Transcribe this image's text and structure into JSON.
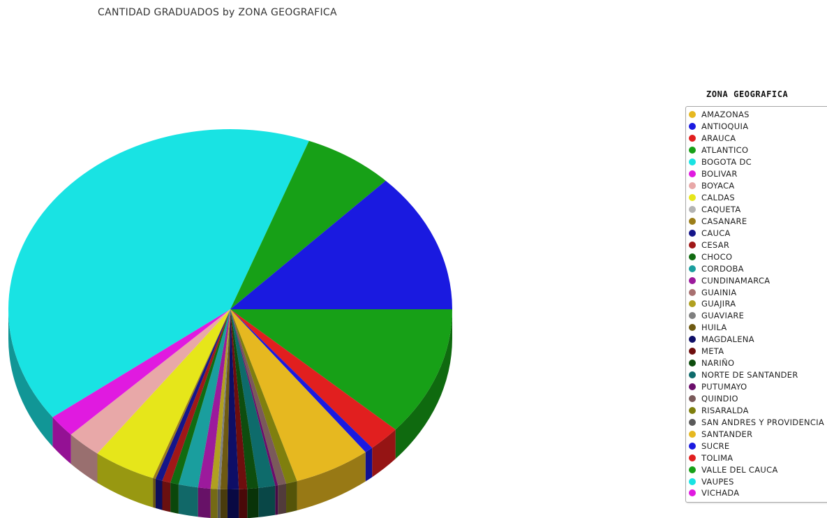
{
  "chart_data": {
    "type": "pie",
    "title": "CANTIDAD GRADUADOS by ZONA GEOGRAFICA",
    "legend_title": "ZONA GEOGRAFICA",
    "legend_position": "right",
    "style": "3d",
    "categories": [
      "AMAZONAS",
      "ANTIOQUIA",
      "ARAUCA",
      "ATLANTICO",
      "BOGOTA DC",
      "BOLIVAR",
      "BOYACA",
      "CALDAS",
      "CAQUETA",
      "CASANARE",
      "CAUCA",
      "CESAR",
      "CHOCO",
      "CORDOBA",
      "CUNDINAMARCA",
      "GUAINIA",
      "GUAJIRA",
      "GUAVIARE",
      "HUILA",
      "MAGDALENA",
      "META",
      "NARIÑO",
      "NORTE DE SANTANDER",
      "PUTUMAYO",
      "QUINDIO",
      "RISARALDA",
      "SAN ANDRES Y PROVIDENCIA",
      "SANTANDER",
      "SUCRE",
      "TOLIMA",
      "VALLE DEL CAUCA",
      "VAUPES",
      "VICHADA"
    ],
    "values": [
      0,
      12.5,
      0,
      6.5,
      40.5,
      2.0,
      2.5,
      4.5,
      0,
      0.2,
      0.5,
      0.6,
      0.6,
      1.4,
      0.9,
      0,
      0.5,
      0.2,
      0.5,
      0.8,
      0.6,
      0.8,
      1.2,
      0.2,
      0.6,
      0.8,
      0,
      5.5,
      0.6,
      2.3,
      11.5,
      0,
      0
    ],
    "colors": [
      "#E6B820",
      "#1A1AE0",
      "#E11F1F",
      "#17A017",
      "#19E3E3",
      "#E01AE0",
      "#E8A8A8",
      "#E6E61A",
      "#B3B3B3",
      "#9C7E1A",
      "#15158A",
      "#A01818",
      "#116B11",
      "#1A9E9E",
      "#9C1A9C",
      "#A87070",
      "#B0A020",
      "#7F7F7F",
      "#6E5A12",
      "#0E0E66",
      "#6E0E0E",
      "#0E4D0E",
      "#0E6B6B",
      "#6B0E6B",
      "#7A5A5A",
      "#7F7F0E",
      "#5A5A5A",
      "#E6B820",
      "#1A1AE0",
      "#E11F1F",
      "#17A017",
      "#19E3E3",
      "#E01AE0"
    ],
    "slice_order": [
      "VALLE DEL CAUCA",
      "TOLIMA",
      "SUCRE",
      "SANTANDER",
      "RISARALDA",
      "QUINDIO",
      "PUTUMAYO",
      "NORTE DE SANTANDER",
      "NARIÑO",
      "META",
      "MAGDALENA",
      "HUILA",
      "GUAVIARE",
      "GUAJIRA",
      "CUNDINAMARCA",
      "CORDOBA",
      "CHOCO",
      "CESAR",
      "CAUCA",
      "CASANARE",
      "CALDAS",
      "BOYACA",
      "BOLIVAR",
      "BOGOTA DC",
      "ATLANTICO",
      "ANTIOQUIA"
    ]
  }
}
